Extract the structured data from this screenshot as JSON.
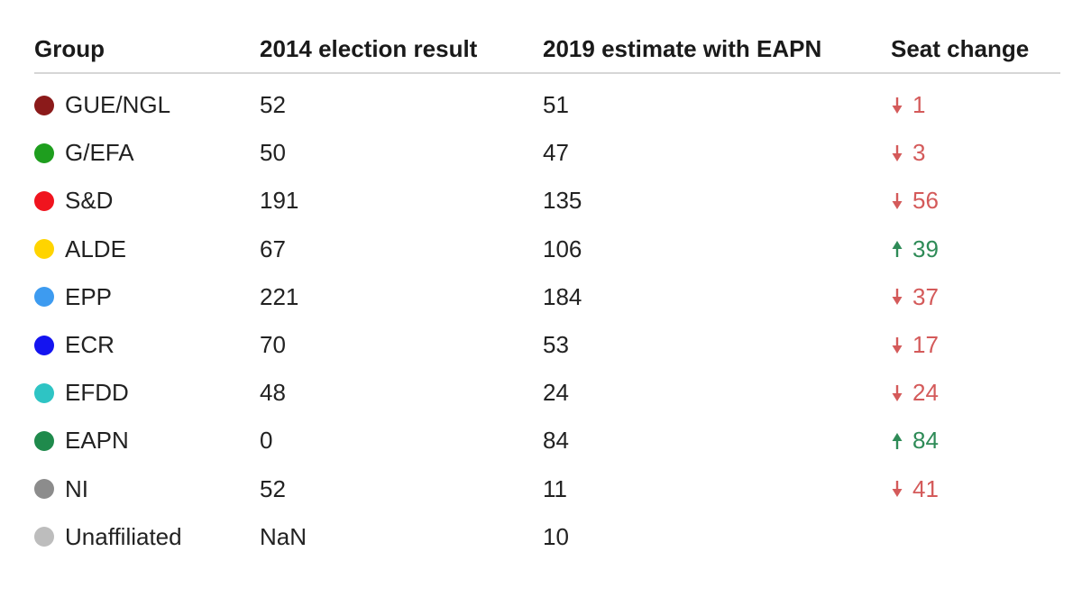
{
  "chart_data": {
    "type": "table",
    "columns": [
      "Group",
      "2014 election result",
      "2019 estimate with EAPN",
      "Seat change"
    ],
    "rows": [
      {
        "group": "GUE/NGL",
        "color": "#8b1a1a",
        "result_2014": "52",
        "estimate_2019": "51",
        "change": "1",
        "direction": "down"
      },
      {
        "group": "G/EFA",
        "color": "#1e9e1e",
        "result_2014": "50",
        "estimate_2019": "47",
        "change": "3",
        "direction": "down"
      },
      {
        "group": "S&D",
        "color": "#f0141e",
        "result_2014": "191",
        "estimate_2019": "135",
        "change": "56",
        "direction": "down"
      },
      {
        "group": "ALDE",
        "color": "#ffd400",
        "result_2014": "67",
        "estimate_2019": "106",
        "change": "39",
        "direction": "up"
      },
      {
        "group": "EPP",
        "color": "#3d9bf0",
        "result_2014": "221",
        "estimate_2019": "184",
        "change": "37",
        "direction": "down"
      },
      {
        "group": "ECR",
        "color": "#1414f0",
        "result_2014": "70",
        "estimate_2019": "53",
        "change": "17",
        "direction": "down"
      },
      {
        "group": "EFDD",
        "color": "#2ec4c4",
        "result_2014": "48",
        "estimate_2019": "24",
        "change": "24",
        "direction": "down"
      },
      {
        "group": "EAPN",
        "color": "#1f8a4c",
        "result_2014": "0",
        "estimate_2019": "84",
        "change": "84",
        "direction": "up"
      },
      {
        "group": "NI",
        "color": "#8c8c8c",
        "result_2014": "52",
        "estimate_2019": "11",
        "change": "41",
        "direction": "down"
      },
      {
        "group": "Unaffiliated",
        "color": "#bdbdbd",
        "result_2014": "NaN",
        "estimate_2019": "10",
        "change": "",
        "direction": ""
      }
    ]
  },
  "colors": {
    "down": "#d45a5a",
    "up": "#2e8b57",
    "header_rule": "#d6d6d6"
  },
  "icons": {
    "down": "arrow-down-icon",
    "up": "arrow-up-icon"
  }
}
